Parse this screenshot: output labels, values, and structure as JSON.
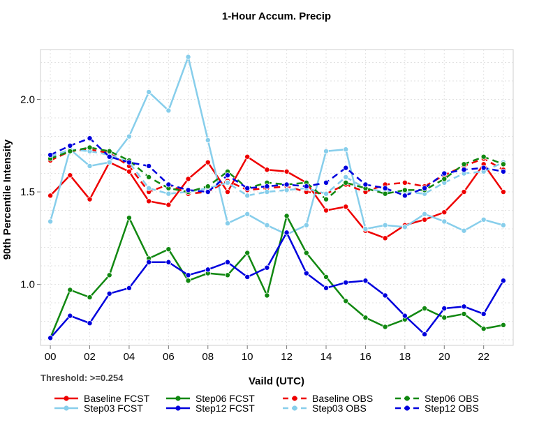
{
  "chart_data": {
    "type": "line",
    "title": "1-Hour Accum. Precip",
    "xlabel": "Vaild (UTC)",
    "ylabel": "90th Percentile Intensity",
    "annotation": "Threshold: >=0.254",
    "x": [
      0,
      1,
      2,
      3,
      4,
      5,
      6,
      7,
      8,
      9,
      10,
      11,
      12,
      13,
      14,
      15,
      16,
      17,
      18,
      19,
      20,
      21,
      22,
      23
    ],
    "xlim": [
      -0.5,
      23.5
    ],
    "ylim": [
      0.67,
      2.27
    ],
    "x_ticks": [
      {
        "value": 0,
        "label": "00"
      },
      {
        "value": 2,
        "label": "02"
      },
      {
        "value": 4,
        "label": "04"
      },
      {
        "value": 6,
        "label": "06"
      },
      {
        "value": 8,
        "label": "08"
      },
      {
        "value": 10,
        "label": "10"
      },
      {
        "value": 12,
        "label": "12"
      },
      {
        "value": 14,
        "label": "14"
      },
      {
        "value": 16,
        "label": "16"
      },
      {
        "value": 18,
        "label": "18"
      },
      {
        "value": 20,
        "label": "20"
      },
      {
        "value": 22,
        "label": "22"
      }
    ],
    "y_ticks": [
      {
        "value": 1.0,
        "label": "1.0"
      },
      {
        "value": 1.5,
        "label": "1.5"
      },
      {
        "value": 2.0,
        "label": "2.0"
      }
    ],
    "grid": true,
    "legend_position": "bottom",
    "series": [
      {
        "name": "Baseline FCST",
        "color": "#ee0000",
        "dash": "solid",
        "values": [
          1.48,
          1.59,
          1.46,
          1.66,
          1.61,
          1.45,
          1.43,
          1.57,
          1.66,
          1.5,
          1.69,
          1.62,
          1.61,
          1.55,
          1.4,
          1.42,
          1.29,
          1.25,
          1.32,
          1.35,
          1.39,
          1.5,
          1.65,
          1.5
        ]
      },
      {
        "name": "Step03 FCST",
        "color": "#87ceeb",
        "dash": "solid",
        "values": [
          1.34,
          1.73,
          1.64,
          1.66,
          1.8,
          2.04,
          1.94,
          2.23,
          1.78,
          1.33,
          1.38,
          1.32,
          1.27,
          1.32,
          1.72,
          1.73,
          1.3,
          1.32,
          1.31,
          1.38,
          1.34,
          1.29,
          1.35,
          1.32
        ]
      },
      {
        "name": "Step06 FCST",
        "color": "#118811",
        "dash": "solid",
        "values": [
          0.71,
          0.97,
          0.93,
          1.05,
          1.36,
          1.14,
          1.19,
          1.02,
          1.06,
          1.05,
          1.17,
          0.94,
          1.37,
          1.17,
          1.04,
          0.91,
          0.82,
          0.77,
          0.81,
          0.87,
          0.82,
          0.84,
          0.76,
          0.78
        ]
      },
      {
        "name": "Step12 FCST",
        "color": "#0000dd",
        "dash": "solid",
        "values": [
          0.71,
          0.83,
          0.79,
          0.95,
          0.98,
          1.12,
          1.12,
          1.05,
          1.08,
          1.12,
          1.04,
          1.09,
          1.28,
          1.06,
          0.98,
          1.01,
          1.02,
          0.94,
          0.83,
          0.73,
          0.87,
          0.88,
          0.84,
          1.02
        ]
      },
      {
        "name": "Baseline OBS",
        "color": "#ee0000",
        "dash": "dashed",
        "values": [
          1.67,
          1.72,
          1.73,
          1.71,
          1.64,
          1.5,
          1.54,
          1.49,
          1.5,
          1.56,
          1.51,
          1.52,
          1.53,
          1.5,
          1.49,
          1.54,
          1.5,
          1.54,
          1.55,
          1.53,
          1.59,
          1.64,
          1.68,
          1.62
        ]
      },
      {
        "name": "Step03 OBS",
        "color": "#87ceeb",
        "dash": "dashed",
        "values": [
          1.69,
          1.73,
          1.72,
          1.7,
          1.66,
          1.52,
          1.49,
          1.5,
          1.52,
          1.55,
          1.48,
          1.5,
          1.51,
          1.52,
          1.49,
          1.58,
          1.52,
          1.5,
          1.5,
          1.49,
          1.55,
          1.6,
          1.61,
          1.66
        ]
      },
      {
        "name": "Step06 OBS",
        "color": "#118811",
        "dash": "dashed",
        "values": [
          1.68,
          1.72,
          1.74,
          1.72,
          1.67,
          1.58,
          1.52,
          1.5,
          1.53,
          1.61,
          1.52,
          1.55,
          1.54,
          1.55,
          1.46,
          1.55,
          1.52,
          1.49,
          1.51,
          1.51,
          1.57,
          1.65,
          1.69,
          1.65
        ]
      },
      {
        "name": "Step12 OBS",
        "color": "#0000dd",
        "dash": "dashed",
        "values": [
          1.7,
          1.75,
          1.79,
          1.69,
          1.66,
          1.64,
          1.54,
          1.51,
          1.5,
          1.59,
          1.52,
          1.53,
          1.54,
          1.53,
          1.55,
          1.63,
          1.54,
          1.52,
          1.48,
          1.52,
          1.6,
          1.62,
          1.63,
          1.61
        ]
      }
    ]
  }
}
